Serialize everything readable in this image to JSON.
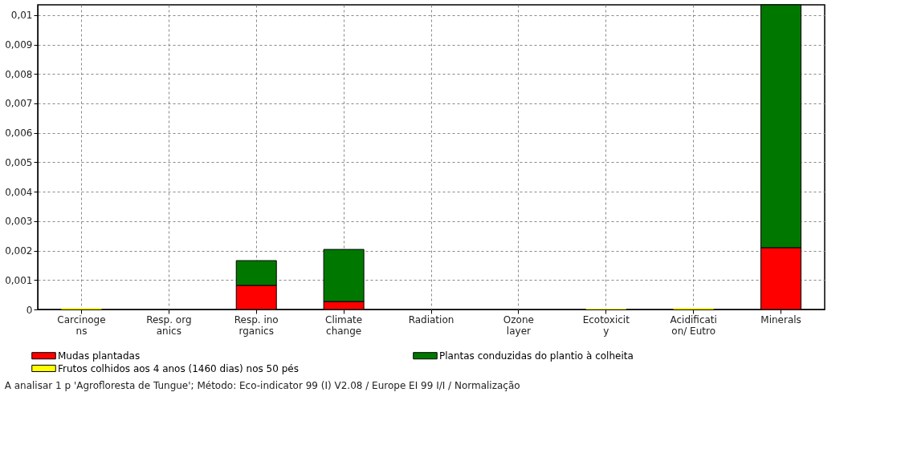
{
  "chart_data": {
    "type": "bar",
    "stacked": true,
    "categories": [
      "Carcinoge\nns",
      "Resp. org\nanics",
      "Resp. ino\nrganics",
      "Climate\nchange",
      "Radiation",
      "Ozone\nlayer",
      "Ecotoxicit\ny",
      "Acidificati\non/ Eutro",
      "Minerals"
    ],
    "series": [
      {
        "name": "Mudas plantadas",
        "color": "#ff0000",
        "values": [
          null,
          null,
          0.00082,
          0.00027,
          null,
          null,
          null,
          null,
          0.0021
        ]
      },
      {
        "name": "Plantas conduzidas do plantio à colheita",
        "color": "#007800",
        "values": [
          null,
          null,
          0.00084,
          0.00177,
          null,
          null,
          null,
          null,
          0.00825
        ]
      },
      {
        "name": "Frutos colhidos aos 4 anos (1460 dias) nos 50 pés",
        "color": "#ffff00",
        "values": [
          5e-05,
          null,
          null,
          null,
          null,
          null,
          3e-05,
          5e-05,
          null
        ]
      }
    ],
    "ylim": [
      0,
      0.01035
    ],
    "yticks": [
      {
        "value": 0,
        "label": "0"
      },
      {
        "value": 0.001,
        "label": "0,001"
      },
      {
        "value": 0.002,
        "label": "0,002"
      },
      {
        "value": 0.003,
        "label": "0,003"
      },
      {
        "value": 0.004,
        "label": "0,004"
      },
      {
        "value": 0.005,
        "label": "0,005"
      },
      {
        "value": 0.006,
        "label": "0,006"
      },
      {
        "value": 0.007,
        "label": "0,007"
      },
      {
        "value": 0.008,
        "label": "0,008"
      },
      {
        "value": 0.009,
        "label": "0,009"
      },
      {
        "value": 0.01,
        "label": "0,01"
      }
    ],
    "grid": true,
    "legend": "bottom",
    "annotations": [
      "A analisar 1 p 'Agrofloresta de Tungue';  Método: Eco-indicator 99 (I) V2.08 / Europe EI 99 I/I / Normalização"
    ]
  }
}
